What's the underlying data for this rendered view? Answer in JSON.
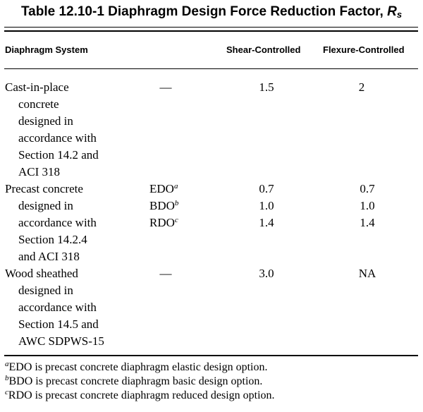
{
  "table": {
    "title_text": "Table 12.10-1 Diaphragm Design Force Reduction Factor, ",
    "title_symbol": "R",
    "title_symbol_sub": "s",
    "headers": {
      "system": "Diaphragm System",
      "shear": "Shear-Controlled",
      "flexure": "Flexure-Controlled"
    },
    "rows": [
      {
        "system_lines": [
          "Cast-in-place",
          "concrete",
          "designed in",
          "accordance with",
          "Section 14.2 and",
          "ACI 318"
        ],
        "options": [
          {
            "label": "—",
            "sup": "",
            "shear": "1.5",
            "flexure": "2"
          }
        ]
      },
      {
        "system_lines": [
          "Precast concrete",
          "designed in",
          "accordance with",
          "Section 14.2.4",
          "and ACI 318"
        ],
        "options": [
          {
            "label": "EDO",
            "sup": "a",
            "shear": "0.7",
            "flexure": "0.7"
          },
          {
            "label": "BDO",
            "sup": "b",
            "shear": "1.0",
            "flexure": "1.0"
          },
          {
            "label": "RDO",
            "sup": "c",
            "shear": "1.4",
            "flexure": "1.4"
          }
        ]
      },
      {
        "system_lines": [
          "Wood sheathed",
          "designed in",
          "accordance with",
          "Section 14.5 and",
          "AWC SDPWS-15"
        ],
        "options": [
          {
            "label": "—",
            "sup": "",
            "shear": "3.0",
            "flexure": "NA"
          }
        ]
      }
    ],
    "footnotes": [
      {
        "mark": "a",
        "text": "EDO is precast concrete diaphragm elastic design option."
      },
      {
        "mark": "b",
        "text": "BDO is precast concrete diaphragm basic design option."
      },
      {
        "mark": "c",
        "text": "RDO is precast concrete diaphragm reduced design option."
      }
    ]
  }
}
